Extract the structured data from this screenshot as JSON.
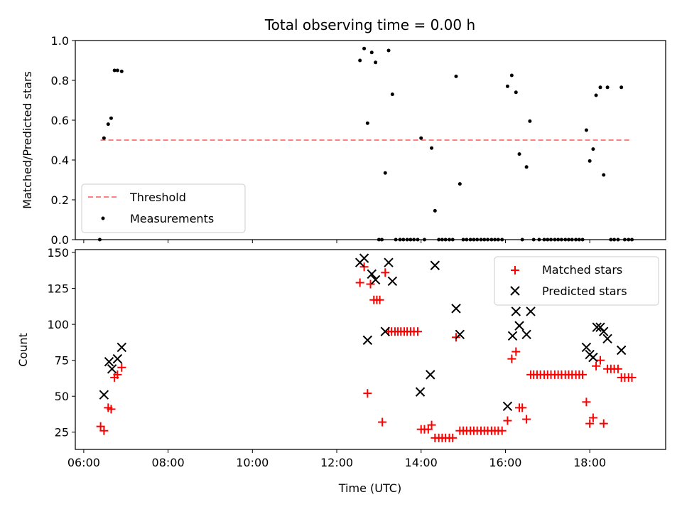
{
  "chart_data": [
    {
      "type": "scatter",
      "title": "Total observing time = 0.00 h",
      "ylabel": "Matched/Predicted stars",
      "xlabel": "",
      "ylim": [
        0,
        1.0
      ],
      "yticks": [
        "0.0",
        "0.2",
        "0.4",
        "0.6",
        "0.8",
        "1.0"
      ],
      "x_unit": "hours UTC",
      "xlim": [
        5.8,
        19.8
      ],
      "legend": {
        "location": "lower-left",
        "entries": [
          "Threshold",
          "Measurements"
        ]
      },
      "series": [
        {
          "name": "Threshold",
          "kind": "dashed-line",
          "color": "#ff8080",
          "x": [
            6.4,
            19.0
          ],
          "y": [
            0.5,
            0.5
          ]
        },
        {
          "name": "Measurements",
          "kind": "dots",
          "color": "#000000",
          "x": [
            6.38,
            6.48,
            6.58,
            6.65,
            6.73,
            6.8,
            6.9,
            12.55,
            12.65,
            12.73,
            12.83,
            12.92,
            13.0,
            13.07,
            13.15,
            13.23,
            13.32,
            13.4,
            13.5,
            13.58,
            13.67,
            13.75,
            13.83,
            13.92,
            14.0,
            14.08,
            14.25,
            14.33,
            14.42,
            14.5,
            14.58,
            14.67,
            14.75,
            14.83,
            14.92,
            15.0,
            15.08,
            15.17,
            15.25,
            15.33,
            15.42,
            15.5,
            15.58,
            15.67,
            15.75,
            15.83,
            15.92,
            16.05,
            16.15,
            16.25,
            16.33,
            16.4,
            16.5,
            16.58,
            16.67,
            16.8,
            16.92,
            17.0,
            17.08,
            17.17,
            17.25,
            17.33,
            17.42,
            17.5,
            17.58,
            17.67,
            17.75,
            17.83,
            17.92,
            18.0,
            18.08,
            18.15,
            18.25,
            18.33,
            18.42,
            18.5,
            18.58,
            18.67,
            18.75,
            18.83,
            18.92,
            19.0
          ],
          "y": [
            0.0,
            0.51,
            0.58,
            0.61,
            0.85,
            0.85,
            0.845,
            0.9,
            0.96,
            0.585,
            0.94,
            0.89,
            0.0,
            0.0,
            0.335,
            0.95,
            0.73,
            0.0,
            0.0,
            0.0,
            0.0,
            0.0,
            0.0,
            0.0,
            0.51,
            0.0,
            0.46,
            0.145,
            0.0,
            0.0,
            0.0,
            0.0,
            0.0,
            0.82,
            0.28,
            0.0,
            0.0,
            0.0,
            0.0,
            0.0,
            0.0,
            0.0,
            0.0,
            0.0,
            0.0,
            0.0,
            0.0,
            0.77,
            0.825,
            0.74,
            0.43,
            0.0,
            0.365,
            0.595,
            0.0,
            0.0,
            0.0,
            0.0,
            0.0,
            0.0,
            0.0,
            0.0,
            0.0,
            0.0,
            0.0,
            0.0,
            0.0,
            0.0,
            0.55,
            0.395,
            0.455,
            0.725,
            0.765,
            0.325,
            0.765,
            0.0,
            0.0,
            0.0,
            0.765,
            0.0,
            0.0,
            0.0
          ]
        }
      ]
    },
    {
      "type": "scatter",
      "title": "",
      "ylabel": "Count",
      "xlabel": "Time (UTC)",
      "ylim": [
        13,
        152
      ],
      "yticks": [
        "25",
        "50",
        "75",
        "100",
        "125",
        "150"
      ],
      "xlim": [
        5.8,
        19.8
      ],
      "xticks": [
        "06:00",
        "08:00",
        "10:00",
        "12:00",
        "14:00",
        "16:00",
        "18:00"
      ],
      "legend": {
        "location": "upper-right",
        "entries": [
          "Matched stars",
          "Predicted stars"
        ]
      },
      "series": [
        {
          "name": "Matched stars",
          "marker": "+",
          "color": "#ff0000",
          "x": [
            6.4,
            6.48,
            6.58,
            6.65,
            6.73,
            6.8,
            6.9,
            12.55,
            12.65,
            12.73,
            12.8,
            12.88,
            12.95,
            13.02,
            13.08,
            13.15,
            13.23,
            13.3,
            13.38,
            13.45,
            13.52,
            13.6,
            13.67,
            13.75,
            13.83,
            13.92,
            14.0,
            14.08,
            14.17,
            14.25,
            14.33,
            14.42,
            14.5,
            14.58,
            14.67,
            14.75,
            14.83,
            14.92,
            15.0,
            15.08,
            15.17,
            15.25,
            15.33,
            15.42,
            15.5,
            15.58,
            15.67,
            15.75,
            15.83,
            15.92,
            16.05,
            16.15,
            16.25,
            16.33,
            16.4,
            16.5,
            16.6,
            16.67,
            16.75,
            16.83,
            16.92,
            17.0,
            17.08,
            17.17,
            17.25,
            17.33,
            17.42,
            17.5,
            17.58,
            17.67,
            17.75,
            17.83,
            17.92,
            18.0,
            18.08,
            18.15,
            18.25,
            18.33,
            18.42,
            18.5,
            18.58,
            18.67,
            18.75,
            18.83,
            18.92,
            19.0
          ],
          "y": [
            29,
            26,
            42,
            41,
            63,
            65,
            70,
            129,
            140,
            52,
            128,
            117,
            117,
            117,
            32,
            136,
            95,
            95,
            95,
            95,
            95,
            95,
            95,
            95,
            95,
            95,
            27,
            27,
            27,
            30,
            21,
            21,
            21,
            21,
            21,
            21,
            91,
            26,
            26,
            26,
            26,
            26,
            26,
            26,
            26,
            26,
            26,
            26,
            26,
            26,
            33,
            76,
            81,
            42,
            42,
            34,
            65,
            65,
            65,
            65,
            65,
            65,
            65,
            65,
            65,
            65,
            65,
            65,
            65,
            65,
            65,
            65,
            46,
            31,
            35,
            71,
            75,
            31,
            69,
            69,
            69,
            69,
            63,
            63,
            63,
            63
          ]
        },
        {
          "name": "Predicted stars",
          "marker": "x",
          "color": "#000000",
          "x": [
            6.48,
            6.6,
            6.67,
            6.8,
            6.9,
            12.55,
            12.65,
            12.73,
            12.83,
            12.92,
            13.15,
            13.23,
            13.32,
            13.98,
            14.22,
            14.33,
            14.83,
            14.92,
            16.05,
            16.17,
            16.25,
            16.33,
            16.5,
            16.6,
            17.92,
            18.0,
            18.08,
            18.17,
            18.25,
            18.33,
            18.42,
            18.75
          ],
          "y": [
            51,
            74,
            69,
            76,
            84,
            143,
            146,
            89,
            135,
            131,
            95,
            143,
            130,
            53,
            65,
            141,
            111,
            93,
            43,
            92,
            109,
            99,
            93,
            109,
            84,
            79,
            77,
            98,
            98,
            95,
            90,
            82
          ]
        }
      ]
    }
  ]
}
